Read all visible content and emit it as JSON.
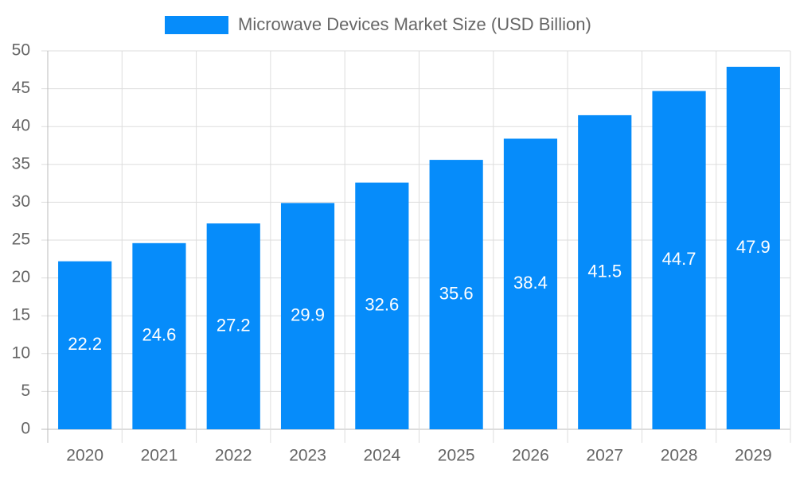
{
  "chart_data": {
    "type": "bar",
    "categories": [
      "2020",
      "2021",
      "2022",
      "2023",
      "2024",
      "2025",
      "2026",
      "2027",
      "2028",
      "2029"
    ],
    "series": [
      {
        "name": "Microwave Devices Market Size (USD Billion)",
        "color": "#068cfa",
        "values": [
          22.2,
          24.6,
          27.2,
          29.9,
          32.6,
          35.6,
          38.4,
          41.5,
          44.7,
          47.9
        ]
      }
    ],
    "ylim": [
      0,
      50
    ],
    "yticks": [
      0,
      5,
      10,
      15,
      20,
      25,
      30,
      35,
      40,
      45,
      50
    ],
    "grid": true,
    "legend": "top"
  }
}
